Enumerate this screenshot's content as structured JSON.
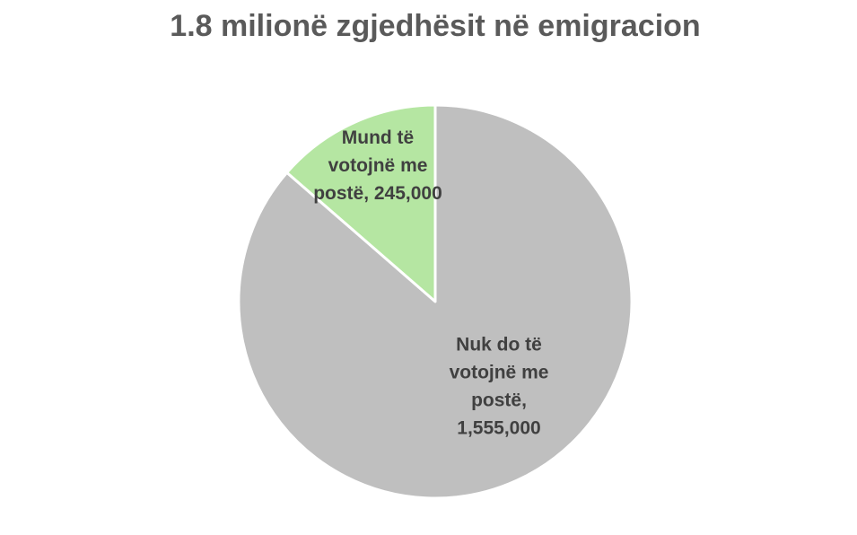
{
  "chart_data": {
    "type": "pie",
    "title": "1.8 milionë zgjedhësit në emigracion",
    "slices": [
      {
        "name": "Mund të votojnë me postë",
        "value": 245000,
        "color": "#b5e6a2",
        "label_lines": [
          "Mund të",
          "votojnë me",
          "postë, 245,000"
        ]
      },
      {
        "name": "Nuk do të votojnë me postë",
        "value": 1555000,
        "color": "#bfbfbf",
        "label_lines": [
          "Nuk do të",
          "votojnë me",
          "postë,",
          "1,555,000"
        ]
      }
    ],
    "start": "12 o'clock",
    "direction": "counter-clockwise",
    "legend": "none"
  }
}
